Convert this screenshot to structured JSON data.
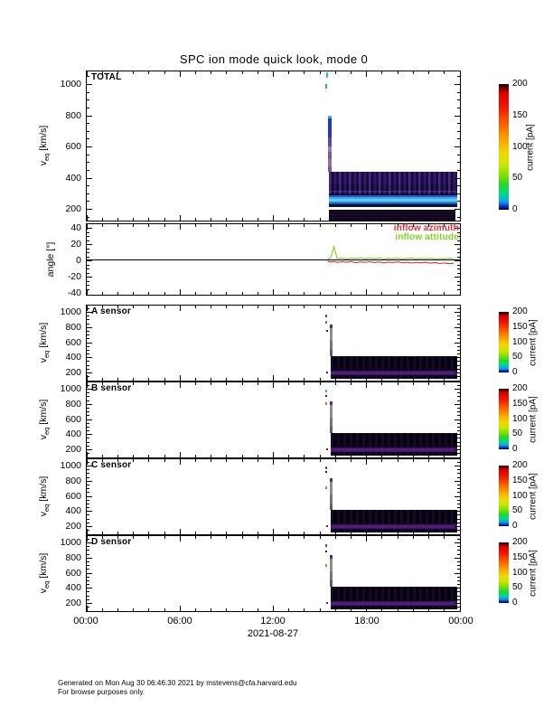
{
  "title": "SPC ion mode quick look, mode 0",
  "date_label": "2021-08-27",
  "x_axis": {
    "tick_labels": [
      "00:00",
      "06:00",
      "12:00",
      "18:00",
      "00:00"
    ],
    "minor_tick_interval_hours": 1,
    "major_tick_interval_hours": 6
  },
  "colorbar": {
    "label": "current [pA]",
    "tick_labels": [
      "200",
      "150",
      "100",
      "50",
      "0"
    ],
    "range_pA": [
      0,
      200
    ],
    "gradient_order_bottom_to_top": [
      "black",
      "blue",
      "cyan",
      "green",
      "yellow",
      "orange",
      "red",
      "black-cap"
    ]
  },
  "legend": {
    "azimuth": {
      "label": "inflow azimuth",
      "color": "#e62e2e"
    },
    "attitude": {
      "label": "inflow attitude",
      "color": "#7fd41f"
    }
  },
  "footer": {
    "line1": "Generated on Mon Aug 30 06:46:30 2021 by mstevens@cfa.harvard.edu",
    "line2": "For browse purposes only."
  },
  "chart_data": [
    {
      "type": "heatmap",
      "panel": "TOTAL",
      "label": "TOTAL",
      "ylabel_base": "v",
      "ylabel_sub": "eq",
      "ylabel_units": "[km/s]",
      "yticks": [
        200,
        400,
        600,
        800,
        1000
      ],
      "ylim": [
        120,
        1090
      ],
      "xlim_hours": [
        0,
        24
      ],
      "colorbar_range_pA": [
        0,
        200
      ],
      "features": {
        "pre_spike_specks": {
          "time": "15:18",
          "v_kms": [
            990,
            1060
          ],
          "colors": [
            "cyan",
            "green"
          ]
        },
        "spike": {
          "time": "15:30",
          "v_range_kms": [
            430,
            800
          ],
          "note": "narrow vertical burst, cyan tip, blue upper, magenta-pink lower"
        },
        "main_band": {
          "time_range": [
            "15:35",
            "23:40"
          ],
          "v_range_kms": [
            210,
            430
          ],
          "note": "indigo/purple noisy band, ~5-30 pA"
        },
        "bright_core": {
          "time_range": [
            "15:35",
            "23:40"
          ],
          "v_range_kms": [
            215,
            265
          ],
          "note": "bright cyan-blue band, ~30-60 pA"
        },
        "lower_band": {
          "time_range": [
            "15:35",
            "23:40"
          ],
          "v_range_kms": [
            130,
            200
          ],
          "note": "very dark band with faint purple pinstripes, separated by white gap"
        }
      }
    },
    {
      "type": "line",
      "panel": "angle",
      "ylabel": "angle [°]",
      "yticks": [
        -40,
        -20,
        0,
        20,
        40
      ],
      "ylim": [
        -45,
        45
      ],
      "zero_line": true,
      "series": [
        {
          "name": "inflow azimuth",
          "color": "#e62e2e",
          "x_hours": [
            15.5,
            15.7,
            15.9,
            16.1,
            16.4,
            16.7,
            17.0,
            17.3,
            17.6,
            17.9,
            18.2,
            18.5,
            18.8,
            19.1,
            19.4,
            19.7,
            20.0,
            20.3,
            20.6,
            20.9,
            21.2,
            21.5,
            21.8,
            22.1,
            22.4,
            22.7,
            23.0,
            23.3,
            23.6
          ],
          "y_deg": [
            -2.0,
            -3.2,
            -2.4,
            -3.6,
            -2.8,
            -3.4,
            -2.6,
            -4.0,
            -3.0,
            -3.6,
            -2.8,
            -3.8,
            -3.0,
            -4.2,
            -3.2,
            -3.8,
            -3.0,
            -4.0,
            -3.4,
            -4.4,
            -3.6,
            -4.2,
            -3.4,
            -4.6,
            -3.8,
            -5.0,
            -4.2,
            -5.2,
            -4.6
          ]
        },
        {
          "name": "inflow attitude",
          "color": "#7fd41f",
          "x_hours": [
            15.5,
            15.7,
            15.9,
            16.1,
            16.4,
            16.7,
            17.0,
            17.3,
            17.6,
            17.9,
            18.2,
            18.5,
            18.8,
            19.1,
            19.4,
            19.7,
            20.0,
            20.3,
            20.6,
            20.9,
            21.2,
            21.5,
            21.8,
            22.1,
            22.4,
            22.7,
            23.0,
            23.3,
            23.6
          ],
          "y_deg": [
            0.8,
            2.5,
            16.0,
            1.2,
            2.0,
            0.6,
            1.8,
            1.0,
            2.2,
            0.8,
            1.6,
            1.0,
            2.0,
            0.6,
            1.4,
            1.0,
            1.8,
            0.8,
            1.2,
            1.6,
            0.8,
            1.4,
            1.0,
            1.6,
            0.6,
            1.2,
            0.8,
            1.4,
            1.0
          ]
        }
      ]
    },
    {
      "type": "heatmap",
      "panel": "A sensor",
      "label": "A sensor",
      "ylabel_base": "v",
      "ylabel_sub": "eq",
      "ylabel_units": "[km/s]",
      "yticks": [
        200,
        400,
        600,
        800,
        1000
      ],
      "ylim": [
        80,
        1090
      ],
      "xlim_hours": [
        0,
        24
      ],
      "colorbar_range_pA": [
        0,
        200
      ],
      "features": {
        "spike": {
          "time": "15:30",
          "v_range_kms": [
            430,
            850
          ],
          "note": "gray narrow burst with purple tip"
        },
        "main_band": {
          "time_range": [
            "15:35",
            "23:40"
          ],
          "v_range_kms": [
            130,
            430
          ],
          "note": "near-black band"
        },
        "bright_core": {
          "time_range": [
            "15:35",
            "23:40"
          ],
          "v_range_kms": [
            185,
            240
          ],
          "note": "purple band, ~10-25 pA"
        }
      }
    },
    {
      "type": "heatmap",
      "panel": "B sensor",
      "label": "B sensor",
      "ylabel_base": "v",
      "ylabel_sub": "eq",
      "ylabel_units": "[km/s]",
      "yticks": [
        200,
        400,
        600,
        800,
        1000
      ],
      "ylim": [
        80,
        1090
      ],
      "xlim_hours": [
        0,
        24
      ],
      "colorbar_range_pA": [
        0,
        200
      ],
      "features": {
        "spike": {
          "time": "15:30",
          "v_range_kms": [
            430,
            840
          ],
          "note": "gray narrow burst"
        },
        "main_band": {
          "time_range": [
            "15:35",
            "23:40"
          ],
          "v_range_kms": [
            130,
            430
          ],
          "note": "near-black band"
        },
        "bright_core": {
          "time_range": [
            "15:35",
            "23:40"
          ],
          "v_range_kms": [
            185,
            240
          ],
          "note": "purple band"
        }
      }
    },
    {
      "type": "heatmap",
      "panel": "C sensor",
      "label": "C sensor",
      "ylabel_base": "v",
      "ylabel_sub": "eq",
      "ylabel_units": "[km/s]",
      "yticks": [
        200,
        400,
        600,
        800,
        1000
      ],
      "ylim": [
        80,
        1090
      ],
      "xlim_hours": [
        0,
        24
      ],
      "colorbar_range_pA": [
        0,
        200
      ],
      "features": {
        "spike": {
          "time": "15:30",
          "v_range_kms": [
            430,
            850
          ],
          "note": "gray narrow burst"
        },
        "main_band": {
          "time_range": [
            "15:35",
            "23:40"
          ],
          "v_range_kms": [
            130,
            430
          ],
          "note": "near-black band"
        },
        "bright_core": {
          "time_range": [
            "15:35",
            "23:40"
          ],
          "v_range_kms": [
            185,
            240
          ],
          "note": "purple band"
        }
      }
    },
    {
      "type": "heatmap",
      "panel": "D sensor",
      "label": "D sensor",
      "ylabel_base": "v",
      "ylabel_sub": "eq",
      "ylabel_units": "[km/s]",
      "yticks": [
        200,
        400,
        600,
        800,
        1000
      ],
      "ylim": [
        80,
        1090
      ],
      "xlim_hours": [
        0,
        24
      ],
      "colorbar_range_pA": [
        0,
        200
      ],
      "features": {
        "spike": {
          "time": "15:30",
          "v_range_kms": [
            430,
            850
          ],
          "note": "gray narrow burst"
        },
        "main_band": {
          "time_range": [
            "15:35",
            "23:40"
          ],
          "v_range_kms": [
            130,
            430
          ],
          "note": "near-black band"
        },
        "bright_core": {
          "time_range": [
            "15:35",
            "23:40"
          ],
          "v_range_kms": [
            185,
            240
          ],
          "note": "purple band"
        }
      }
    }
  ]
}
